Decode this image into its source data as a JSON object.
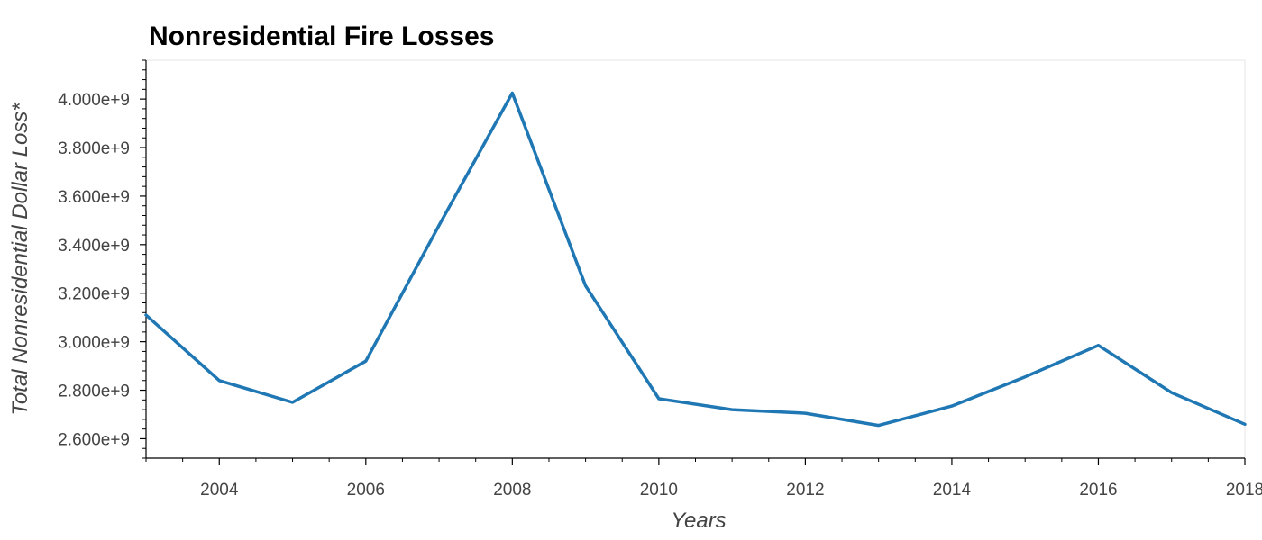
{
  "chart_data": {
    "type": "line",
    "title": "Nonresidential Fire Losses",
    "xlabel": "Years",
    "ylabel": "Total Nonresidential Dollar Loss*",
    "xlim": [
      2003,
      2018
    ],
    "ylim": [
      2520000000,
      4160000000
    ],
    "x_ticks": [
      2004,
      2006,
      2008,
      2010,
      2012,
      2014,
      2016,
      2018
    ],
    "x_tick_labels": [
      "2004",
      "2006",
      "2008",
      "2010",
      "2012",
      "2014",
      "2016",
      "2018"
    ],
    "y_ticks": [
      2600000000,
      2800000000,
      3000000000,
      3200000000,
      3400000000,
      3600000000,
      3800000000,
      4000000000
    ],
    "y_tick_labels": [
      "2.600e+9",
      "2.800e+9",
      "3.000e+9",
      "3.200e+9",
      "3.400e+9",
      "3.600e+9",
      "3.800e+9",
      "4.000e+9"
    ],
    "series": [
      {
        "color": "#1f77b4",
        "x": [
          2003,
          2004,
          2005,
          2006,
          2007,
          2008,
          2009,
          2010,
          2011,
          2012,
          2013,
          2014,
          2015,
          2016,
          2017,
          2018
        ],
        "values": [
          3110000000,
          2840000000,
          2750000000,
          2920000000,
          3480000000,
          4025000000,
          3230000000,
          2765000000,
          2720000000,
          2705000000,
          2655000000,
          2735000000,
          2855000000,
          2985000000,
          2790000000,
          2660000000
        ]
      }
    ],
    "grid": false,
    "legend": "none",
    "x_minor_ticks_per_major": 4,
    "y_minor_ticks_per_major": 5
  }
}
